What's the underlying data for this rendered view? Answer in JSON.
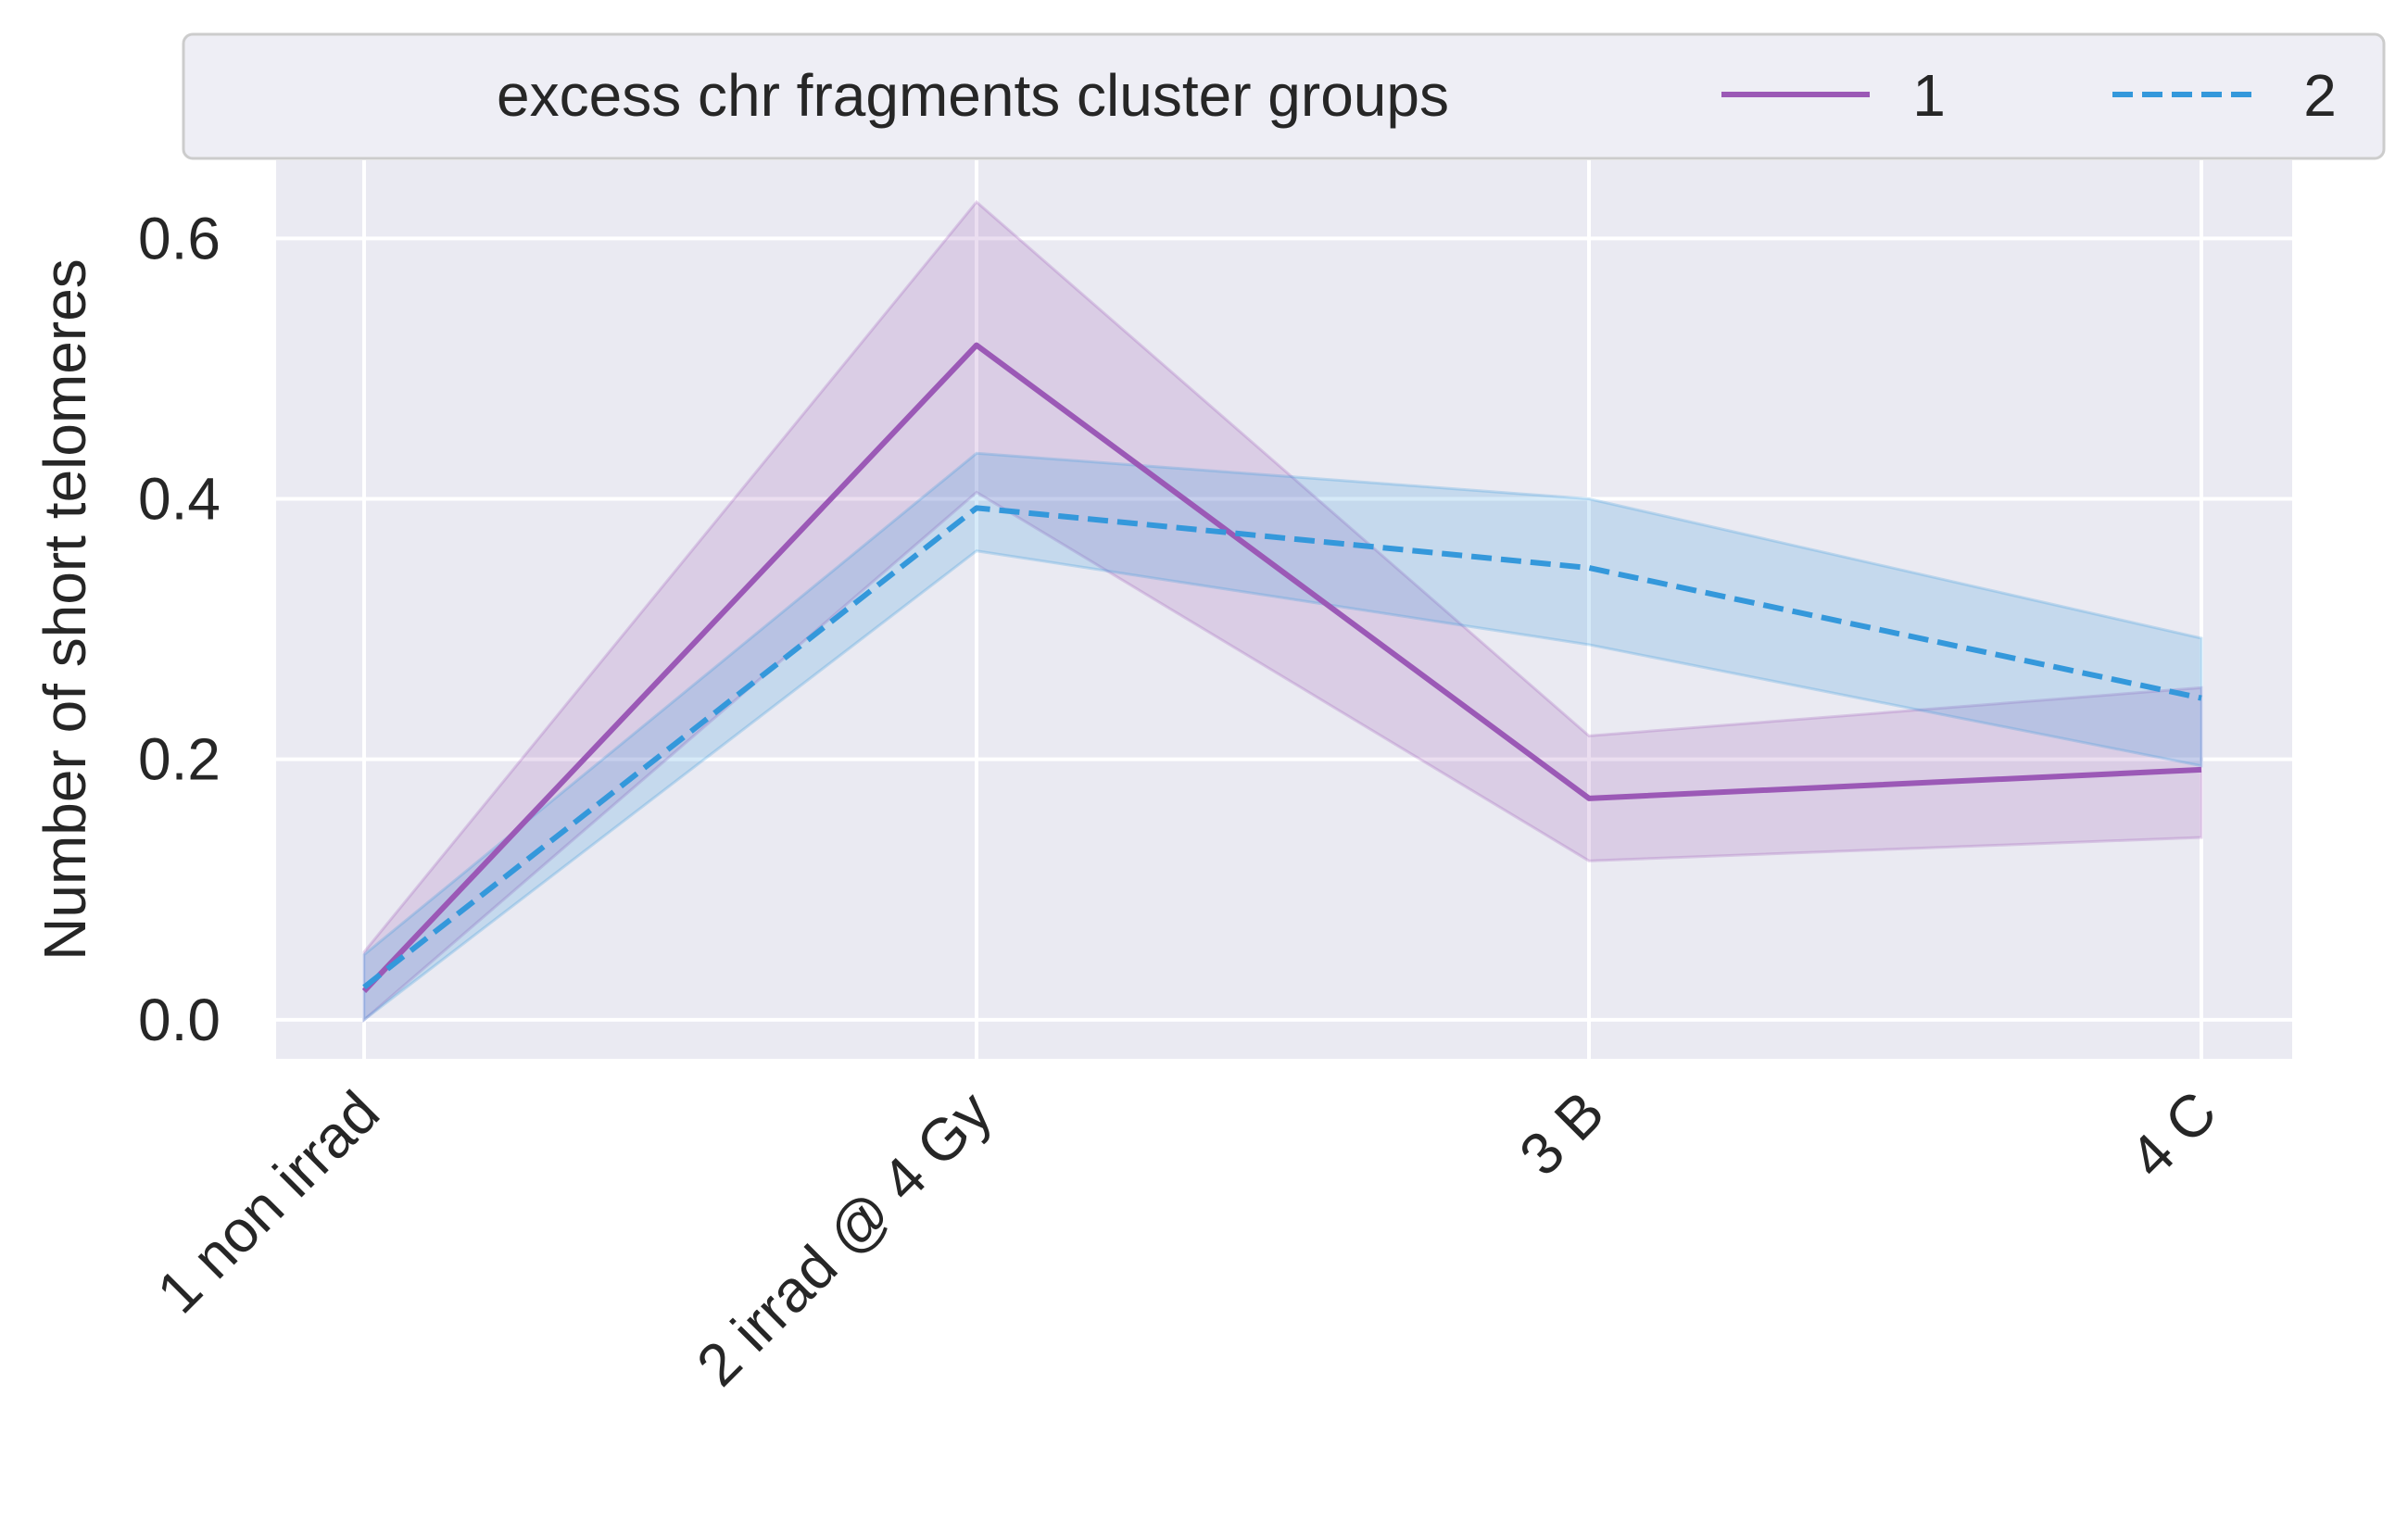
{
  "chart_data": {
    "type": "line",
    "categories": [
      "1 non irrad",
      "2 irrad @ 4 Gy",
      "3 B",
      "4 C"
    ],
    "xlabel": "",
    "ylabel": "Number of short telomeres",
    "ylim": [
      -0.03,
      0.66
    ],
    "yticks": [
      0.0,
      0.2,
      0.4,
      0.6
    ],
    "ytick_labels": [
      "0.0",
      "0.2",
      "0.4",
      "0.6"
    ],
    "grid": true,
    "legend": {
      "title": "excess chr fragments cluster groups",
      "placement": "top, above plot",
      "columns": 3
    },
    "series": [
      {
        "name": "1",
        "color": "#9b59b6",
        "style": "solid",
        "values": [
          0.022,
          0.518,
          0.17,
          0.192
        ],
        "ci_lower": [
          0.0,
          0.405,
          0.122,
          0.14
        ],
        "ci_upper": [
          0.052,
          0.628,
          0.218,
          0.255
        ]
      },
      {
        "name": "2",
        "color": "#3498db",
        "style": "dashed",
        "values": [
          0.025,
          0.393,
          0.347,
          0.247
        ],
        "ci_lower": [
          0.0,
          0.36,
          0.288,
          0.195
        ],
        "ci_upper": [
          0.05,
          0.435,
          0.4,
          0.293
        ]
      }
    ]
  }
}
